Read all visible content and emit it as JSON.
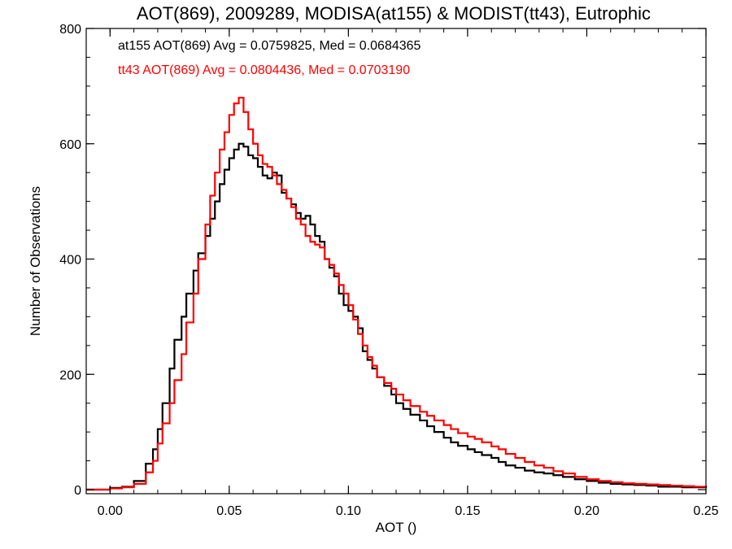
{
  "chart_data": {
    "type": "line",
    "title": "AOT(869), 2009289, MODISA(at155) & MODIST(tt43), Eutrophic",
    "xlabel": "AOT ()",
    "ylabel": "Number of Observations",
    "xlim": [
      -0.01,
      0.25
    ],
    "ylim": [
      0,
      800
    ],
    "x_ticks": [
      "0.00",
      "0.05",
      "0.10",
      "0.15",
      "0.20",
      "0.25"
    ],
    "y_ticks": [
      "0",
      "200",
      "400",
      "600",
      "800"
    ],
    "grid": false,
    "annotations": [
      {
        "text": "at155 AOT(869) Avg = 0.0759825, Med = 0.0684365",
        "color": "#000000"
      },
      {
        "text": "tt43 AOT(869) Avg = 0.0804436, Med = 0.0703190",
        "color": "#ff0000"
      }
    ],
    "series": [
      {
        "color": "#000000",
        "points": [
          [
            -0.01,
            0
          ],
          [
            0.0,
            3
          ],
          [
            0.005,
            5
          ],
          [
            0.01,
            15
          ],
          [
            0.015,
            45
          ],
          [
            0.018,
            70
          ],
          [
            0.02,
            105
          ],
          [
            0.022,
            150
          ],
          [
            0.025,
            210
          ],
          [
            0.027,
            260
          ],
          [
            0.03,
            300
          ],
          [
            0.032,
            340
          ],
          [
            0.035,
            380
          ],
          [
            0.037,
            410
          ],
          [
            0.04,
            440
          ],
          [
            0.042,
            470
          ],
          [
            0.044,
            500
          ],
          [
            0.046,
            530
          ],
          [
            0.048,
            555
          ],
          [
            0.05,
            575
          ],
          [
            0.052,
            590
          ],
          [
            0.054,
            600
          ],
          [
            0.056,
            595
          ],
          [
            0.058,
            580
          ],
          [
            0.06,
            575
          ],
          [
            0.062,
            560
          ],
          [
            0.064,
            545
          ],
          [
            0.066,
            540
          ],
          [
            0.068,
            550
          ],
          [
            0.07,
            545
          ],
          [
            0.072,
            515
          ],
          [
            0.074,
            505
          ],
          [
            0.076,
            495
          ],
          [
            0.078,
            480
          ],
          [
            0.08,
            470
          ],
          [
            0.082,
            475
          ],
          [
            0.084,
            460
          ],
          [
            0.086,
            440
          ],
          [
            0.088,
            430
          ],
          [
            0.09,
            400
          ],
          [
            0.092,
            385
          ],
          [
            0.094,
            370
          ],
          [
            0.096,
            340
          ],
          [
            0.098,
            320
          ],
          [
            0.1,
            310
          ],
          [
            0.102,
            300
          ],
          [
            0.104,
            280
          ],
          [
            0.106,
            240
          ],
          [
            0.108,
            225
          ],
          [
            0.11,
            210
          ],
          [
            0.112,
            195
          ],
          [
            0.115,
            180
          ],
          [
            0.118,
            165
          ],
          [
            0.12,
            150
          ],
          [
            0.123,
            140
          ],
          [
            0.126,
            130
          ],
          [
            0.13,
            120
          ],
          [
            0.133,
            110
          ],
          [
            0.136,
            100
          ],
          [
            0.14,
            90
          ],
          [
            0.143,
            82
          ],
          [
            0.146,
            76
          ],
          [
            0.15,
            70
          ],
          [
            0.153,
            65
          ],
          [
            0.156,
            60
          ],
          [
            0.16,
            55
          ],
          [
            0.163,
            48
          ],
          [
            0.166,
            42
          ],
          [
            0.17,
            38
          ],
          [
            0.174,
            33
          ],
          [
            0.178,
            30
          ],
          [
            0.182,
            28
          ],
          [
            0.186,
            25
          ],
          [
            0.19,
            22
          ],
          [
            0.195,
            18
          ],
          [
            0.2,
            15
          ],
          [
            0.205,
            12
          ],
          [
            0.21,
            10
          ],
          [
            0.215,
            9
          ],
          [
            0.22,
            8
          ],
          [
            0.225,
            7
          ],
          [
            0.23,
            5
          ],
          [
            0.235,
            5
          ],
          [
            0.24,
            4
          ],
          [
            0.245,
            4
          ],
          [
            0.25,
            3
          ]
        ]
      },
      {
        "color": "#ff0000",
        "points": [
          [
            -0.01,
            0
          ],
          [
            0.0,
            2
          ],
          [
            0.005,
            4
          ],
          [
            0.01,
            10
          ],
          [
            0.015,
            30
          ],
          [
            0.018,
            50
          ],
          [
            0.02,
            80
          ],
          [
            0.022,
            115
          ],
          [
            0.025,
            150
          ],
          [
            0.027,
            190
          ],
          [
            0.03,
            235
          ],
          [
            0.032,
            290
          ],
          [
            0.035,
            340
          ],
          [
            0.037,
            400
          ],
          [
            0.04,
            460
          ],
          [
            0.042,
            510
          ],
          [
            0.044,
            550
          ],
          [
            0.046,
            590
          ],
          [
            0.048,
            620
          ],
          [
            0.05,
            650
          ],
          [
            0.052,
            670
          ],
          [
            0.054,
            680
          ],
          [
            0.056,
            655
          ],
          [
            0.058,
            625
          ],
          [
            0.06,
            600
          ],
          [
            0.062,
            580
          ],
          [
            0.064,
            565
          ],
          [
            0.066,
            560
          ],
          [
            0.068,
            545
          ],
          [
            0.07,
            530
          ],
          [
            0.072,
            520
          ],
          [
            0.074,
            505
          ],
          [
            0.076,
            490
          ],
          [
            0.078,
            470
          ],
          [
            0.08,
            460
          ],
          [
            0.082,
            440
          ],
          [
            0.084,
            430
          ],
          [
            0.086,
            425
          ],
          [
            0.088,
            420
          ],
          [
            0.09,
            400
          ],
          [
            0.092,
            390
          ],
          [
            0.094,
            375
          ],
          [
            0.096,
            355
          ],
          [
            0.098,
            340
          ],
          [
            0.1,
            320
          ],
          [
            0.102,
            295
          ],
          [
            0.104,
            270
          ],
          [
            0.106,
            250
          ],
          [
            0.108,
            230
          ],
          [
            0.11,
            215
          ],
          [
            0.112,
            195
          ],
          [
            0.115,
            185
          ],
          [
            0.118,
            175
          ],
          [
            0.12,
            165
          ],
          [
            0.123,
            155
          ],
          [
            0.126,
            145
          ],
          [
            0.13,
            135
          ],
          [
            0.133,
            128
          ],
          [
            0.136,
            120
          ],
          [
            0.14,
            112
          ],
          [
            0.143,
            105
          ],
          [
            0.146,
            98
          ],
          [
            0.15,
            92
          ],
          [
            0.153,
            88
          ],
          [
            0.156,
            82
          ],
          [
            0.16,
            75
          ],
          [
            0.163,
            70
          ],
          [
            0.166,
            62
          ],
          [
            0.17,
            55
          ],
          [
            0.174,
            48
          ],
          [
            0.178,
            42
          ],
          [
            0.182,
            38
          ],
          [
            0.186,
            32
          ],
          [
            0.19,
            28
          ],
          [
            0.195,
            22
          ],
          [
            0.2,
            18
          ],
          [
            0.205,
            15
          ],
          [
            0.21,
            13
          ],
          [
            0.215,
            11
          ],
          [
            0.22,
            10
          ],
          [
            0.225,
            9
          ],
          [
            0.23,
            8
          ],
          [
            0.235,
            7
          ],
          [
            0.24,
            6
          ],
          [
            0.245,
            5
          ],
          [
            0.25,
            4
          ]
        ]
      }
    ]
  }
}
